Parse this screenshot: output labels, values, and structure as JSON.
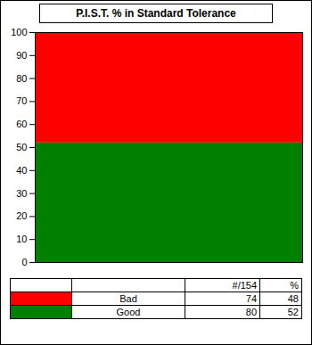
{
  "chart_data": {
    "type": "bar",
    "title": "P.I.S.T. % in Standard Tolerance",
    "stacked": true,
    "tick_labels": "y",
    "categories": [
      null
    ],
    "series": [
      {
        "name": "Bad",
        "color": "#ff0000",
        "values": [
          48
        ],
        "count": 74
      },
      {
        "name": "Good",
        "color": "#008000",
        "values": [
          52
        ],
        "count": 80
      }
    ],
    "ylim": [
      0,
      100
    ],
    "yticks": [
      0,
      10,
      20,
      30,
      40,
      50,
      60,
      70,
      80,
      90,
      100
    ]
  },
  "table": {
    "header": [
      "",
      "",
      "#/154",
      "%"
    ]
  }
}
